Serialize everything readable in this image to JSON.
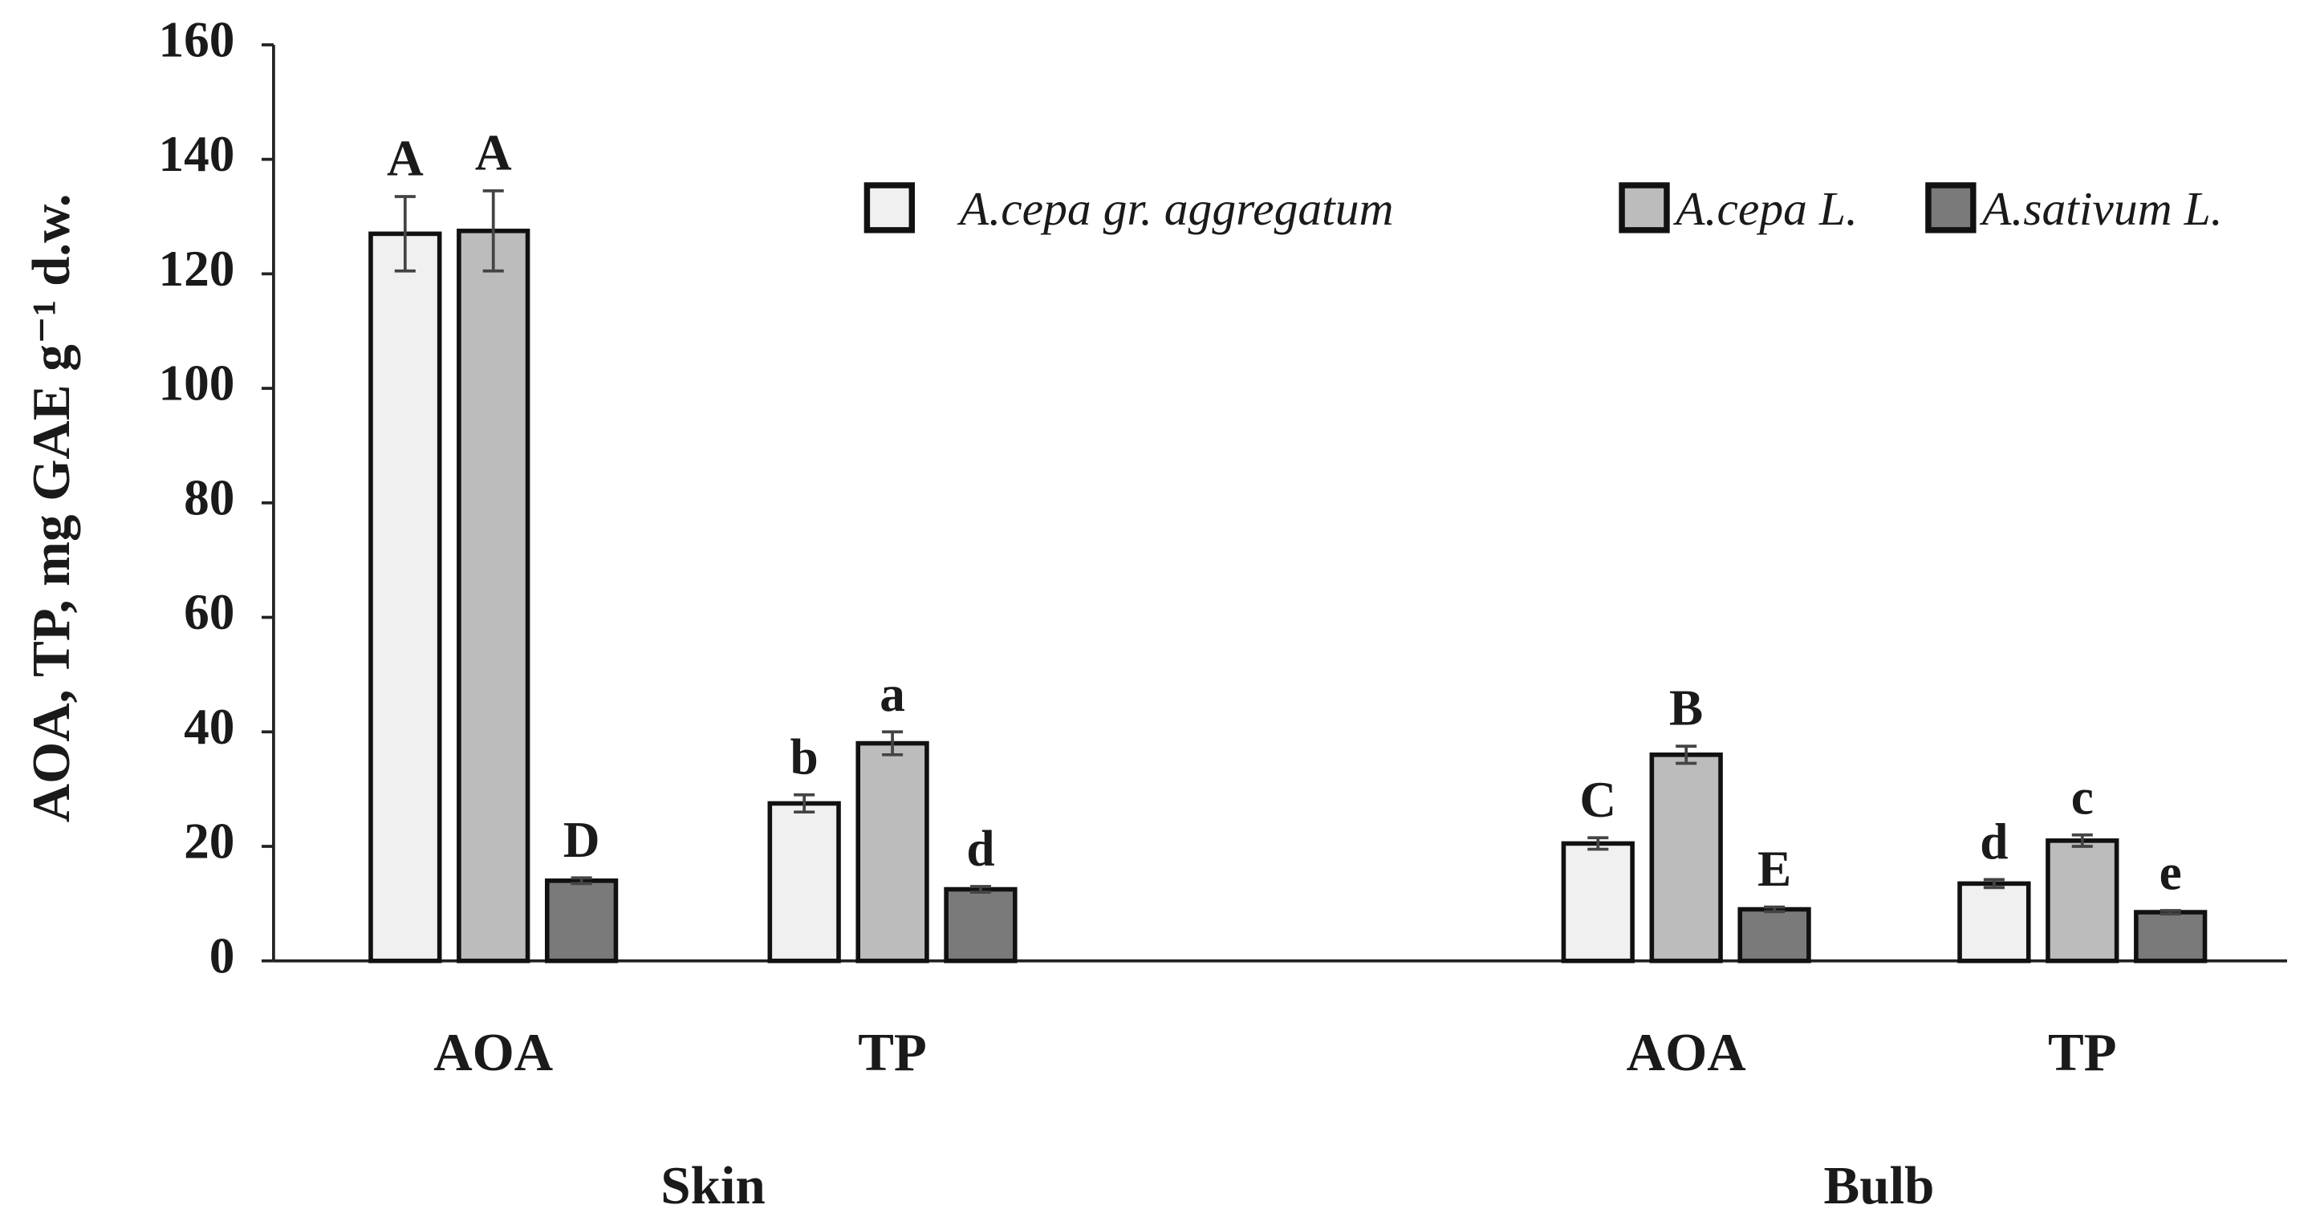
{
  "chart_data": {
    "type": "bar",
    "y_label": "AOA, TP, mg GAE g⁻¹ d.w.",
    "categories": [
      "AOA",
      "TP",
      "AOA",
      "TP"
    ],
    "groups": [
      "Skin",
      "Bulb"
    ],
    "ylim": [
      0,
      160
    ],
    "yticks": [
      0,
      20,
      40,
      60,
      80,
      100,
      120,
      140,
      160
    ],
    "series": [
      {
        "name": "A.cepa gr. aggregatum",
        "color": "#f0f0f0",
        "values": [
          127,
          27.5,
          20.5,
          13.5
        ],
        "errors": [
          6.5,
          1.5,
          1,
          0.7
        ],
        "letters": [
          "A",
          "b",
          "C",
          "d"
        ]
      },
      {
        "name": "A.cepa L.",
        "color": "#bcbcbc",
        "values": [
          127.5,
          38,
          36,
          21
        ],
        "errors": [
          7,
          2,
          1.5,
          1
        ],
        "letters": [
          "A",
          "a",
          "B",
          "c"
        ]
      },
      {
        "name": "A.sativum L.",
        "color": "#7a7a7a",
        "values": [
          14,
          12.5,
          9,
          8.5
        ],
        "errors": [
          0.5,
          0.5,
          0.4,
          0.3
        ],
        "letters": [
          "D",
          "d",
          "E",
          "e"
        ]
      }
    ]
  }
}
